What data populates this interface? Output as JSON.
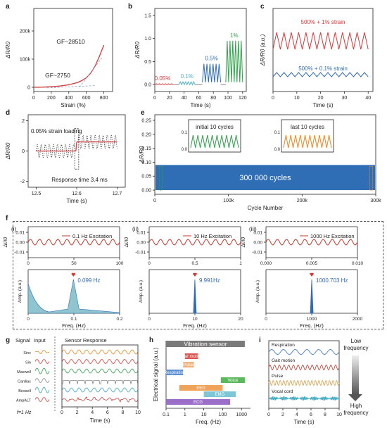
{
  "panel_letters": {
    "a": "a",
    "b": "b",
    "c": "c",
    "d": "d",
    "e": "e",
    "f": "f",
    "g": "g",
    "h": "h",
    "i": "i"
  },
  "sub_panels": {
    "i": "(i)",
    "ii": "(ii)",
    "iii": "(iii)"
  },
  "colors": {
    "red": "#d43a3a",
    "blue": "#2f6db5",
    "green": "#2fa14a",
    "teal": "#4cb3c4",
    "orange": "#f0861a",
    "darkred": "#c0392b",
    "gray": "#999999"
  },
  "chart_data": [
    {
      "id": "a",
      "type": "line",
      "xlabel": "Strain (%)",
      "ylabel": "ΔR/R0",
      "xlim": [
        0,
        900
      ],
      "ylim": [
        -15000,
        280000
      ],
      "x_ticks": [
        0,
        200,
        400,
        600,
        800
      ],
      "y_ticks": [
        {
          "v": 0,
          "label": "0"
        },
        {
          "v": 100000,
          "label": "100k"
        },
        {
          "v": 200000,
          "label": "200k"
        }
      ],
      "annotations": [
        "GF~28510",
        "GF~2750"
      ],
      "series": [
        {
          "x": [
            0,
            100,
            200,
            300,
            400,
            500,
            550,
            600,
            650,
            700,
            750,
            800
          ],
          "y": [
            0,
            500,
            2000,
            4500,
            9000,
            17000,
            24000,
            34000,
            50000,
            75000,
            110000,
            150000
          ]
        }
      ]
    },
    {
      "id": "b",
      "type": "line",
      "xlabel": "Time (s)",
      "ylabel": "ΔR/R0",
      "xlim": [
        0,
        125
      ],
      "ylim": [
        -0.15,
        1.65
      ],
      "x_ticks": [
        0,
        20,
        40,
        60,
        80,
        100,
        120
      ],
      "y_ticks": [
        0.0,
        0.5,
        1.0,
        1.5
      ],
      "segment_labels": [
        "0.05%",
        "0.1%",
        "0.5%",
        "1%"
      ],
      "segments": [
        {
          "label": "0.05%",
          "x_start": 0,
          "x_end": 25,
          "amplitude": 0.02,
          "base": 0.0
        },
        {
          "label": "0.1%",
          "x_start": 33,
          "x_end": 55,
          "amplitude": 0.06,
          "base": 0.0
        },
        {
          "label": "0.5%",
          "x_start": 65,
          "x_end": 90,
          "amplitude": 0.4,
          "base": 0.05
        },
        {
          "label": "1%",
          "x_start": 97,
          "x_end": 120,
          "amplitude": 0.9,
          "base": 0.05
        }
      ]
    },
    {
      "id": "c",
      "type": "line",
      "xlabel": "Time (s)",
      "ylabel": "ΔR/R0 (a.u.)",
      "xlim": [
        0,
        42
      ],
      "x_ticks": [
        0,
        10,
        20,
        30,
        40
      ],
      "series": [
        {
          "name": "500% + 1% strain",
          "cycles": 13
        },
        {
          "name": "500% + 0.1% strain",
          "cycles": 13
        }
      ]
    },
    {
      "id": "d",
      "type": "line",
      "xlabel": "Time (s)",
      "ylabel": "ΔR/R0",
      "xlim": [
        12.48,
        12.72
      ],
      "ylim": [
        -2.4,
        2.4
      ],
      "x_ticks": [
        12.5,
        12.6,
        12.7
      ],
      "y_ticks": [
        -2,
        0,
        2
      ],
      "annotations": [
        "0.05% strain loading",
        "Response time 3.4 ms"
      ]
    },
    {
      "id": "e",
      "type": "line",
      "xlabel": "Cycle Number",
      "ylabel": "ΔR/R0",
      "xlim": [
        0,
        300000
      ],
      "x_ticks": [
        {
          "v": 0,
          "label": "0"
        },
        {
          "v": 100000,
          "label": "100k"
        },
        {
          "v": 200000,
          "label": "200k"
        },
        {
          "v": 300000,
          "label": "300k"
        }
      ],
      "y_ticks": [
        0.0,
        0.05,
        0.1,
        0.15,
        0.2,
        0.25
      ],
      "band": [
        0.0,
        0.09
      ],
      "center_label": "300 000 cycles",
      "insets": [
        {
          "title": "initial 10 cycles",
          "y_ticks": [
            0.0,
            0.1
          ],
          "cycles": 10
        },
        {
          "title": "last 10 cycles",
          "y_ticks": [
            0.0,
            0.1
          ],
          "cycles": 10
        }
      ]
    },
    {
      "id": "f-i",
      "type": "line",
      "ylabel": "ΔI/I0",
      "xlabel": "",
      "xlim": [
        0,
        100
      ],
      "x_ticks": [
        0,
        50,
        100
      ],
      "y_ticks": [
        0.01,
        0.0,
        -0.01
      ],
      "legend": "0.1 Hz Excitation",
      "spectrum": {
        "xlabel": "Freq. (Hz)",
        "ylabel": "Amp. (a.u.)",
        "xlim": [
          0,
          0.2
        ],
        "x_ticks": [
          0.0,
          0.1,
          0.2
        ],
        "peak": 0.099,
        "peak_label": "0.099 Hz"
      }
    },
    {
      "id": "f-ii",
      "type": "line",
      "ylabel": "ΔI/I0",
      "xlabel": "",
      "xlim": [
        0,
        1.0
      ],
      "x_ticks": [
        0.0,
        0.5,
        1.0
      ],
      "y_ticks": [
        0.01,
        0.0,
        -0.01
      ],
      "legend": "10 Hz Excitation",
      "spectrum": {
        "xlabel": "Freq. (Hz)",
        "ylabel": "Amp. (a.u.)",
        "xlim": [
          0,
          20
        ],
        "x_ticks": [
          0,
          10,
          20
        ],
        "peak": 9.991,
        "peak_label": "9.991Hz"
      }
    },
    {
      "id": "f-iii",
      "type": "line",
      "ylabel": "ΔI/I0",
      "xlabel": "",
      "xlim": [
        0,
        0.01
      ],
      "x_ticks": [
        "0.000",
        "0.005",
        "0.010"
      ],
      "y_ticks": [
        0.01,
        0.0,
        -0.01
      ],
      "legend": "1000 Hz Excitation",
      "spectrum": {
        "xlabel": "Freq. (Hz)",
        "ylabel": "Amp. (a.u.)",
        "xlim": [
          0,
          2000
        ],
        "x_ticks": [
          0,
          1000,
          2000
        ],
        "peak": 1000.703,
        "peak_label": "1000.703 Hz"
      }
    },
    {
      "id": "g",
      "type": "line",
      "headers": [
        "Signal",
        "Input",
        "Sensor Response"
      ],
      "signals": [
        "Sinc",
        "Sin",
        "Maxwell",
        "Cardiac",
        "Bessell",
        "AmpALT"
      ],
      "freq_note": "f=1 Hz",
      "xlabel": "Time (s)",
      "x_ticks": [
        0,
        2,
        4,
        6,
        8,
        10
      ]
    },
    {
      "id": "h",
      "type": "bar",
      "xlabel": "Freq. (Hz)",
      "ylabel": "Electrical signal (a.u.)",
      "x_scale": "log",
      "x_ticks": [
        "0.1",
        "1",
        "10",
        "100",
        "1000"
      ],
      "ranges": [
        {
          "name": "Vibration sensor",
          "from": 0.1,
          "to": 1500
        },
        {
          "name": "Gait motion",
          "from": 1,
          "to": 5
        },
        {
          "name": "Pulse",
          "from": 0.8,
          "to": 3
        },
        {
          "name": "Respiration",
          "from": 0.1,
          "to": 0.8
        },
        {
          "name": "Voice",
          "from": 80,
          "to": 1500
        },
        {
          "name": "EEG",
          "from": 0.5,
          "to": 100
        },
        {
          "name": "EMG",
          "from": 10,
          "to": 500
        },
        {
          "name": "ECG",
          "from": 0.1,
          "to": 250
        }
      ]
    },
    {
      "id": "i",
      "type": "line",
      "xlabel": "Time (s)",
      "x_ticks": [
        0,
        2,
        4,
        6,
        8,
        10
      ],
      "series": [
        {
          "name": "Respiration"
        },
        {
          "name": "Gait motion"
        },
        {
          "name": "Pulse"
        },
        {
          "name": "Vocal cord"
        }
      ],
      "arrow_top": "Low frequency",
      "arrow_bottom": "High frequency"
    }
  ]
}
